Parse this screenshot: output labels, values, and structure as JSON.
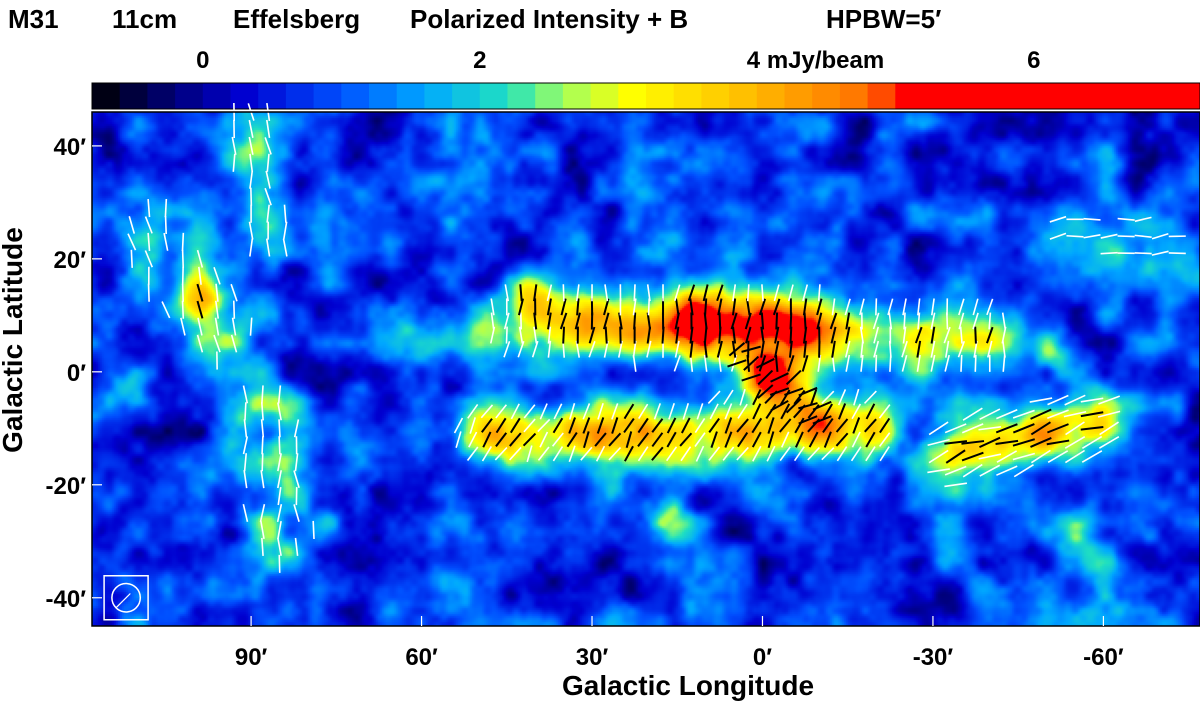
{
  "chart_data": {
    "type": "heatmap",
    "title": "M31   11cm   Effelsberg   Polarized Intensity + B    HPBW=5′",
    "title_parts": [
      "M31",
      "11cm",
      "Effelsberg",
      "Polarized Intensity + B",
      "HPBW=5′"
    ],
    "xlabel": "Galactic Longitude",
    "ylabel": "Galactic Latitude",
    "x_unit": "arcmin",
    "y_unit": "arcmin",
    "xlim": [
      118,
      -77
    ],
    "ylim": [
      -45,
      46
    ],
    "x_ticks": [
      {
        "value": 90,
        "label": "90′"
      },
      {
        "value": 60,
        "label": "60′"
      },
      {
        "value": 30,
        "label": "30′"
      },
      {
        "value": 0,
        "label": "0′"
      },
      {
        "value": -30,
        "label": "-30′"
      },
      {
        "value": -60,
        "label": "-60′"
      }
    ],
    "y_ticks": [
      {
        "value": 40,
        "label": "40′"
      },
      {
        "value": 20,
        "label": "20′"
      },
      {
        "value": 0,
        "label": "0′"
      },
      {
        "value": -20,
        "label": "-20′"
      },
      {
        "value": -40,
        "label": "-40′"
      }
    ],
    "colorbar": {
      "min": -0.8,
      "max": 7.2,
      "unit": "mJy/beam",
      "ticks": [
        {
          "value": 0,
          "label": "0"
        },
        {
          "value": 2,
          "label": "2"
        },
        {
          "value": 4,
          "label": "4 mJy/beam"
        },
        {
          "value": 6,
          "label": "6"
        }
      ],
      "colors": [
        "#000000",
        "#00007a",
        "#0000d0",
        "#0050ff",
        "#00a8ff",
        "#20e0c0",
        "#a0ff60",
        "#ffff00",
        "#ffc000",
        "#ff7000",
        "#ff0000"
      ],
      "color_stops": [
        -0.8,
        -0.2,
        0.3,
        1.0,
        1.6,
        2.2,
        2.6,
        3.1,
        3.9,
        4.8,
        5.1
      ]
    },
    "beam": {
      "hpbw_arcmin": 5,
      "x": 112,
      "y": -40
    },
    "background_level": 0.7,
    "components": [
      {
        "name": "north-ring-arm",
        "x0": 42,
        "y0": 9,
        "x1": -38,
        "y1": 6,
        "amp": 2.5,
        "width": 4.5,
        "side": 3
      },
      {
        "name": "north-ring-peak",
        "x0": 12,
        "y0": 9.5,
        "x1": -8,
        "y1": 9,
        "amp": 2.5,
        "width": 3.5,
        "side": 3
      },
      {
        "name": "north-ring-inner",
        "x0": 30,
        "y0": 8,
        "x1": 14,
        "y1": 9,
        "amp": 1.0,
        "width": 3.5,
        "side": 3
      },
      {
        "name": "south-ring-arm",
        "x0": 48,
        "y0": -11,
        "x1": -18,
        "y1": -10,
        "amp": 2.8,
        "width": 4,
        "side": 3
      },
      {
        "name": "southwest-arm",
        "x0": -34,
        "y0": -14,
        "x1": -58,
        "y1": -9,
        "amp": 3.0,
        "width": 4,
        "side": 3
      },
      {
        "name": "central-source",
        "x0": -1,
        "y0": -0.5,
        "x1": -1,
        "y1": -0.5,
        "amp": 4.2,
        "width": 2.4,
        "side": 3
      },
      {
        "name": "central-bridge",
        "x0": 2,
        "y0": 1,
        "x1": -10,
        "y1": -7,
        "amp": 1.6,
        "width": 3,
        "side": 3
      },
      {
        "name": "east-arm-north",
        "x0": 90,
        "y0": 44,
        "x1": 86,
        "y1": 24,
        "amp": 1.2,
        "width": 4,
        "side": 3
      },
      {
        "name": "east-arm-middle",
        "x0": 108,
        "y0": 24,
        "x1": 96,
        "y1": 8,
        "amp": 1.3,
        "width": 5,
        "side": 3
      },
      {
        "name": "east-arm-south",
        "x0": 88,
        "y0": -8,
        "x1": 85,
        "y1": -28,
        "amp": 1.3,
        "width": 5,
        "side": 3
      },
      {
        "name": "east-knot",
        "x0": 99,
        "y0": 13,
        "x1": 99,
        "y1": 13,
        "amp": 1.6,
        "width": 2.5,
        "side": 3
      },
      {
        "name": "east-edge-source",
        "x0": 112,
        "y0": -2,
        "x1": 112,
        "y1": -2,
        "amp": 1.4,
        "width": 2.5,
        "side": 3
      },
      {
        "name": "west-field",
        "x0": -55,
        "y0": 25,
        "x1": -72,
        "y1": 20,
        "amp": 1.0,
        "width": 5,
        "side": 3
      },
      {
        "name": "west-knot",
        "x0": -51,
        "y0": 4,
        "x1": -51,
        "y1": 4,
        "amp": 1.5,
        "width": 2.5,
        "side": 3
      },
      {
        "name": "southeast-knot",
        "x0": 16,
        "y0": -26,
        "x1": 16,
        "y1": -26,
        "amp": 1.4,
        "width": 2.5,
        "side": 3
      },
      {
        "name": "northeast-knot",
        "x0": 41,
        "y0": 14,
        "x1": 41,
        "y1": 14,
        "amp": 1.4,
        "width": 2.5,
        "side": 3
      },
      {
        "name": "southwest-lower-field",
        "x0": -55,
        "y0": -28,
        "x1": -58,
        "y1": -42,
        "amp": 0.9,
        "width": 4,
        "side": 3
      },
      {
        "name": "mid-east-field",
        "x0": 62,
        "y0": 6,
        "x1": 52,
        "y1": 4,
        "amp": 0.9,
        "width": 4,
        "side": 3
      }
    ],
    "vector_groups": [
      {
        "name": "north-arm-vectors",
        "x0": 42,
        "y0": 9,
        "x1": -38,
        "y1": 6,
        "angle_deg": 85,
        "spread": 7,
        "dx": 2.5,
        "dy": 2.5,
        "length": 3.0
      },
      {
        "name": "south-arm-vectors",
        "x0": 48,
        "y0": -11,
        "x1": -18,
        "y1": -10,
        "angle_deg": 60,
        "spread": 6,
        "dx": 2.5,
        "dy": 2.5,
        "length": 3.0
      },
      {
        "name": "southwest-arm-vectors",
        "x0": -34,
        "y0": -14,
        "x1": -58,
        "y1": -9,
        "angle_deg": 20,
        "spread": 6,
        "dx": 3.0,
        "dy": 2.5,
        "length": 4.0
      },
      {
        "name": "east-arm-north-vectors",
        "x0": 90,
        "y0": 42,
        "x1": 86,
        "y1": 24,
        "angle_deg": 95,
        "spread": 5,
        "dx": 3.0,
        "dy": 3.0,
        "length": 3.2
      },
      {
        "name": "east-arm-middle-vectors",
        "x0": 108,
        "y0": 24,
        "x1": 96,
        "y1": 8,
        "angle_deg": 100,
        "spread": 6,
        "dx": 3.0,
        "dy": 3.0,
        "length": 3.2
      },
      {
        "name": "east-arm-south-vectors",
        "x0": 88,
        "y0": -8,
        "x1": 85,
        "y1": -28,
        "angle_deg": 92,
        "spread": 6,
        "dx": 3.0,
        "dy": 3.0,
        "length": 3.2
      },
      {
        "name": "west-field-vectors",
        "x0": -55,
        "y0": 26,
        "x1": -72,
        "y1": 22,
        "angle_deg": 5,
        "spread": 4,
        "dx": 3.0,
        "dy": 3.0,
        "length": 3.0
      },
      {
        "name": "central-vectors",
        "x0": 3,
        "y0": 2,
        "x1": -10,
        "y1": -8,
        "angle_deg": 30,
        "spread": 3,
        "dx": 2.5,
        "dy": 2.5,
        "length": 3.5
      }
    ]
  }
}
